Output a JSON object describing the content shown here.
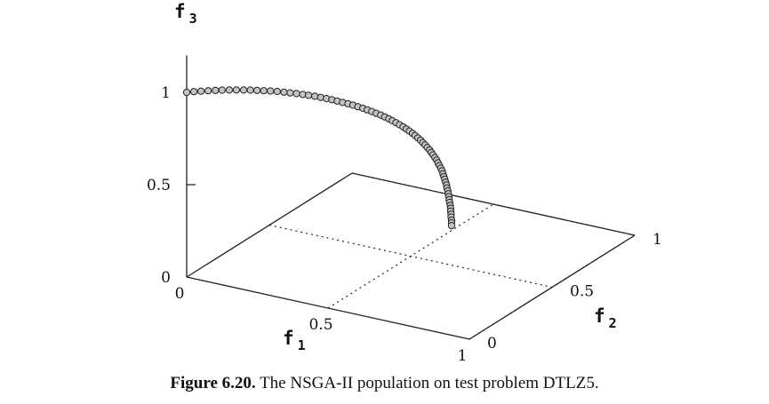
{
  "chart_data": {
    "type": "scatter",
    "projection": "3d",
    "title": "",
    "axes": {
      "x": {
        "label": "f",
        "subscript": "1",
        "range": [
          0,
          1
        ],
        "ticks": [
          "0",
          "0.5",
          "1"
        ]
      },
      "y": {
        "label": "f",
        "subscript": "2",
        "range": [
          0,
          1
        ],
        "ticks": [
          "0",
          "0.5",
          "1"
        ]
      },
      "z": {
        "label": "f",
        "subscript": "3",
        "range": [
          0,
          1.2
        ],
        "ticks": [
          "0",
          "0.5",
          "1"
        ]
      }
    },
    "grid": true,
    "series": [
      {
        "points_xyz": [
          [
            0.0,
            0.0,
            1.0
          ],
          [
            0.016,
            0.016,
            1.0
          ],
          [
            0.032,
            0.032,
            0.999
          ],
          [
            0.048,
            0.048,
            0.998
          ],
          [
            0.064,
            0.064,
            0.996
          ],
          [
            0.079,
            0.079,
            0.994
          ],
          [
            0.095,
            0.095,
            0.991
          ],
          [
            0.111,
            0.111,
            0.988
          ],
          [
            0.127,
            0.127,
            0.984
          ],
          [
            0.142,
            0.142,
            0.98
          ],
          [
            0.157,
            0.157,
            0.975
          ],
          [
            0.172,
            0.172,
            0.97
          ],
          [
            0.187,
            0.187,
            0.965
          ],
          [
            0.202,
            0.202,
            0.959
          ],
          [
            0.217,
            0.217,
            0.952
          ],
          [
            0.231,
            0.231,
            0.945
          ],
          [
            0.245,
            0.245,
            0.938
          ],
          [
            0.259,
            0.259,
            0.93
          ],
          [
            0.272,
            0.272,
            0.922
          ],
          [
            0.286,
            0.286,
            0.914
          ],
          [
            0.299,
            0.299,
            0.905
          ],
          [
            0.312,
            0.312,
            0.896
          ],
          [
            0.324,
            0.324,
            0.887
          ],
          [
            0.336,
            0.336,
            0.877
          ],
          [
            0.348,
            0.348,
            0.867
          ],
          [
            0.36,
            0.36,
            0.857
          ],
          [
            0.371,
            0.371,
            0.847
          ],
          [
            0.382,
            0.382,
            0.836
          ],
          [
            0.393,
            0.393,
            0.825
          ],
          [
            0.403,
            0.403,
            0.814
          ],
          [
            0.413,
            0.413,
            0.803
          ],
          [
            0.423,
            0.423,
            0.791
          ],
          [
            0.433,
            0.433,
            0.779
          ],
          [
            0.442,
            0.442,
            0.767
          ],
          [
            0.451,
            0.451,
            0.755
          ],
          [
            0.459,
            0.459,
            0.743
          ],
          [
            0.467,
            0.467,
            0.73
          ],
          [
            0.475,
            0.475,
            0.717
          ],
          [
            0.483,
            0.483,
            0.704
          ],
          [
            0.49,
            0.49,
            0.691
          ],
          [
            0.497,
            0.497,
            0.678
          ],
          [
            0.504,
            0.504,
            0.664
          ],
          [
            0.51,
            0.51,
            0.651
          ],
          [
            0.516,
            0.516,
            0.637
          ],
          [
            0.522,
            0.522,
            0.623
          ],
          [
            0.527,
            0.527,
            0.609
          ],
          [
            0.532,
            0.532,
            0.595
          ],
          [
            0.537,
            0.537,
            0.58
          ],
          [
            0.542,
            0.542,
            0.566
          ],
          [
            0.546,
            0.546,
            0.551
          ],
          [
            0.55,
            0.55,
            0.537
          ],
          [
            0.554,
            0.554,
            0.522
          ],
          [
            0.558,
            0.558,
            0.507
          ],
          [
            0.561,
            0.561,
            0.492
          ],
          [
            0.564,
            0.564,
            0.476
          ],
          [
            0.567,
            0.567,
            0.461
          ],
          [
            0.57,
            0.57,
            0.446
          ],
          [
            0.572,
            0.572,
            0.43
          ],
          [
            0.574,
            0.574,
            0.414
          ],
          [
            0.576,
            0.576,
            0.399
          ],
          [
            0.578,
            0.578,
            0.383
          ],
          [
            0.58,
            0.58,
            0.367
          ],
          [
            0.581,
            0.581,
            0.351
          ],
          [
            0.583,
            0.583,
            0.335
          ],
          [
            0.584,
            0.584,
            0.319
          ],
          [
            0.585,
            0.585,
            0.303
          ],
          [
            0.586,
            0.586,
            0.287
          ],
          [
            0.587,
            0.587,
            0.271
          ],
          [
            0.588,
            0.588,
            0.255
          ],
          [
            0.589,
            0.589,
            0.239
          ],
          [
            0.589,
            0.589,
            0.223
          ],
          [
            0.59,
            0.59,
            0.207
          ],
          [
            0.59,
            0.59,
            0.191
          ],
          [
            0.591,
            0.591,
            0.175
          ],
          [
            0.591,
            0.591,
            0.16
          ],
          [
            0.591,
            0.591,
            0.145
          ]
        ],
        "marker": "circle",
        "fill": "#c4c4c4",
        "stroke": "#222222"
      }
    ]
  },
  "caption": {
    "label": "Figure 6.20.",
    "text": "The NSGA-II population on test problem DTLZ5."
  }
}
